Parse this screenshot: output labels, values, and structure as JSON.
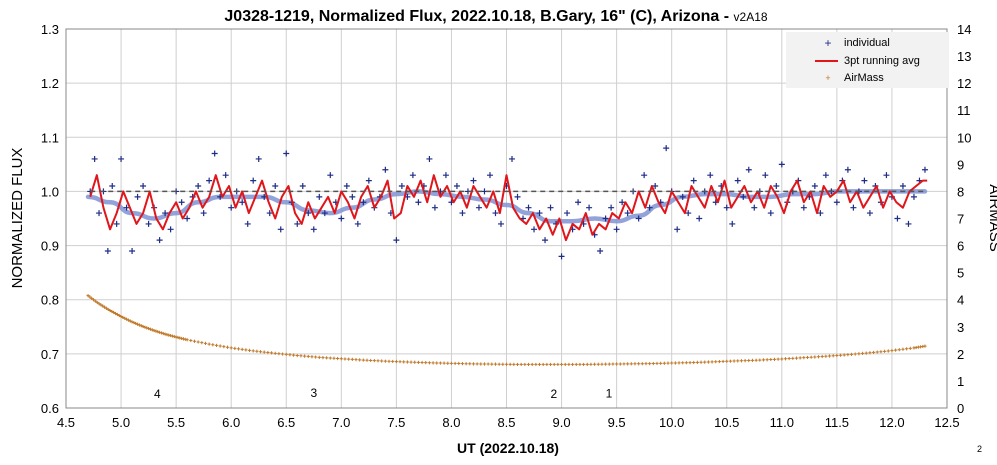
{
  "chart_data": {
    "type": "scatter",
    "title": "J0328-1219, Normalized Flux, 2022.10.18, B.Gary, 16\" (C), Arizona - ",
    "version_tag": "v2A18",
    "xlabel": "UT (2022.10.18)",
    "ylabel": "NORMALIZED FLUX",
    "y2label": "AIRMASS",
    "xlim": [
      4.5,
      12.5
    ],
    "ylim": [
      0.6,
      1.3
    ],
    "y2lim": [
      0,
      14
    ],
    "x_ticks": [
      "4.5",
      "5.0",
      "5.5",
      "6.0",
      "6.5",
      "7.0",
      "7.5",
      "8.0",
      "8.5",
      "9.0",
      "9.5",
      "10.0",
      "10.5",
      "11.0",
      "11.5",
      "12.0",
      "12.5"
    ],
    "y_ticks": [
      "0.6",
      "0.7",
      "0.8",
      "0.9",
      "1.0",
      "1.1",
      "1.2",
      "1.3"
    ],
    "y2_ticks": [
      "0",
      "1",
      "2",
      "3",
      "4",
      "5",
      "6",
      "7",
      "8",
      "9",
      "10",
      "11",
      "12",
      "13",
      "14"
    ],
    "grid": true,
    "legend_position": "top-right",
    "reference_line_y": 1.0,
    "page_number": "2",
    "annotations": [
      {
        "text": "4",
        "x": 5.33,
        "y": 0.626
      },
      {
        "text": "3",
        "x": 6.75,
        "y": 0.628
      },
      {
        "text": "2",
        "x": 8.93,
        "y": 0.626
      },
      {
        "text": "1",
        "x": 9.43,
        "y": 0.627
      }
    ],
    "series": [
      {
        "name": "individual",
        "color": "#1f2d86",
        "marker": "plus",
        "x": [
          4.72,
          4.76,
          4.8,
          4.84,
          4.88,
          4.92,
          4.96,
          5.0,
          5.05,
          5.1,
          5.15,
          5.2,
          5.25,
          5.3,
          5.35,
          5.4,
          5.45,
          5.5,
          5.55,
          5.6,
          5.65,
          5.7,
          5.75,
          5.8,
          5.85,
          5.9,
          5.95,
          6.0,
          6.05,
          6.1,
          6.15,
          6.2,
          6.25,
          6.3,
          6.35,
          6.4,
          6.45,
          6.5,
          6.55,
          6.6,
          6.65,
          6.7,
          6.75,
          6.8,
          6.85,
          6.9,
          6.95,
          7.0,
          7.05,
          7.1,
          7.15,
          7.2,
          7.25,
          7.3,
          7.35,
          7.4,
          7.45,
          7.5,
          7.55,
          7.6,
          7.65,
          7.7,
          7.75,
          7.8,
          7.85,
          7.9,
          7.95,
          8.0,
          8.05,
          8.1,
          8.15,
          8.2,
          8.25,
          8.3,
          8.35,
          8.4,
          8.45,
          8.5,
          8.55,
          8.6,
          8.65,
          8.7,
          8.75,
          8.8,
          8.85,
          8.9,
          8.95,
          9.0,
          9.05,
          9.1,
          9.15,
          9.2,
          9.25,
          9.3,
          9.35,
          9.4,
          9.45,
          9.5,
          9.55,
          9.6,
          9.65,
          9.7,
          9.75,
          9.8,
          9.85,
          9.9,
          9.95,
          10.0,
          10.05,
          10.1,
          10.15,
          10.2,
          10.25,
          10.3,
          10.35,
          10.4,
          10.45,
          10.5,
          10.55,
          10.6,
          10.65,
          10.7,
          10.75,
          10.8,
          10.85,
          10.9,
          10.95,
          11.0,
          11.05,
          11.1,
          11.15,
          11.2,
          11.25,
          11.3,
          11.35,
          11.4,
          11.45,
          11.5,
          11.55,
          11.6,
          11.65,
          11.7,
          11.75,
          11.8,
          11.85,
          11.9,
          11.95,
          12.0,
          12.05,
          12.1,
          12.15,
          12.2,
          12.25,
          12.3
        ],
        "y": [
          1.0,
          1.06,
          0.96,
          1.0,
          0.89,
          1.01,
          0.94,
          1.06,
          0.97,
          0.89,
          0.99,
          1.01,
          0.94,
          0.97,
          0.91,
          0.96,
          0.93,
          1.0,
          0.98,
          0.95,
          0.99,
          1.01,
          0.96,
          1.02,
          1.07,
          0.99,
          1.03,
          0.97,
          1.0,
          0.98,
          0.94,
          1.02,
          1.06,
          0.99,
          0.96,
          1.01,
          0.93,
          1.07,
          0.98,
          0.94,
          1.01,
          0.96,
          0.93,
          0.99,
          0.96,
          1.03,
          0.98,
          0.95,
          1.01,
          0.99,
          0.94,
          0.98,
          1.02,
          0.97,
          0.99,
          1.04,
          0.96,
          0.91,
          1.01,
          0.99,
          1.03,
          0.98,
          1.01,
          1.06,
          0.97,
          1.0,
          1.03,
          0.98,
          1.01,
          0.96,
          1.0,
          1.02,
          0.97,
          1.0,
          1.03,
          0.96,
          0.94,
          1.01,
          1.06,
          0.99,
          0.95,
          0.97,
          0.93,
          0.96,
          0.91,
          0.97,
          0.94,
          0.88,
          0.96,
          0.93,
          0.98,
          0.94,
          0.97,
          0.92,
          0.89,
          0.95,
          0.97,
          0.93,
          0.98,
          0.96,
          1.0,
          0.95,
          1.03,
          0.97,
          1.01,
          0.98,
          1.08,
          1.0,
          0.93,
          0.99,
          0.96,
          1.02,
          0.95,
          1.0,
          1.03,
          0.98,
          1.01,
          0.97,
          0.94,
          1.02,
          0.99,
          1.04,
          0.97,
          1.0,
          1.03,
          0.96,
          1.01,
          1.05,
          0.98,
          1.0,
          1.02,
          0.97,
          0.99,
          1.01,
          0.96,
          1.03,
          1.0,
          0.98,
          1.02,
          1.04,
          0.97,
          1.0,
          1.02,
          0.96,
          1.01,
          0.98,
          1.03,
          0.99,
          0.95,
          1.01,
          0.94,
          0.99,
          1.02,
          1.04
        ]
      },
      {
        "name": "3pt running avg",
        "color": "#e0161b",
        "marker": "line",
        "x": [
          4.72,
          4.78,
          4.84,
          4.9,
          4.96,
          5.02,
          5.08,
          5.14,
          5.2,
          5.26,
          5.32,
          5.38,
          5.44,
          5.5,
          5.56,
          5.62,
          5.68,
          5.74,
          5.8,
          5.86,
          5.92,
          5.98,
          6.04,
          6.1,
          6.16,
          6.22,
          6.28,
          6.34,
          6.4,
          6.46,
          6.52,
          6.58,
          6.64,
          6.7,
          6.76,
          6.82,
          6.88,
          6.94,
          7.0,
          7.06,
          7.12,
          7.18,
          7.24,
          7.3,
          7.36,
          7.42,
          7.48,
          7.54,
          7.6,
          7.66,
          7.72,
          7.78,
          7.84,
          7.9,
          7.96,
          8.02,
          8.08,
          8.14,
          8.2,
          8.26,
          8.32,
          8.38,
          8.44,
          8.5,
          8.56,
          8.62,
          8.68,
          8.74,
          8.8,
          8.86,
          8.92,
          8.98,
          9.04,
          9.1,
          9.16,
          9.22,
          9.28,
          9.34,
          9.4,
          9.46,
          9.52,
          9.58,
          9.64,
          9.7,
          9.76,
          9.82,
          9.88,
          9.94,
          10.0,
          10.06,
          10.12,
          10.18,
          10.24,
          10.3,
          10.36,
          10.42,
          10.48,
          10.54,
          10.6,
          10.66,
          10.72,
          10.78,
          10.84,
          10.9,
          10.96,
          11.02,
          11.08,
          11.14,
          11.2,
          11.26,
          11.32,
          11.38,
          11.44,
          11.5,
          11.56,
          11.62,
          11.68,
          11.74,
          11.8,
          11.86,
          11.92,
          11.98,
          12.04,
          12.1,
          12.16,
          12.22,
          12.28,
          12.32
        ],
        "y": [
          0.99,
          1.03,
          0.97,
          0.93,
          0.96,
          1.0,
          0.97,
          0.94,
          0.96,
          1.0,
          0.95,
          0.93,
          0.96,
          0.98,
          0.95,
          0.97,
          1.0,
          0.97,
          0.99,
          1.03,
          0.99,
          1.01,
          0.97,
          1.0,
          0.96,
          0.99,
          1.02,
          0.98,
          0.95,
          0.99,
          1.01,
          0.96,
          0.94,
          0.98,
          0.95,
          0.97,
          0.99,
          0.96,
          1.0,
          0.98,
          0.95,
          0.99,
          1.01,
          0.97,
          0.99,
          1.02,
          0.95,
          0.96,
          1.01,
          0.99,
          1.02,
          0.98,
          1.03,
          0.99,
          1.01,
          0.98,
          1.0,
          0.97,
          1.01,
          0.99,
          0.97,
          1.0,
          0.96,
          1.03,
          0.97,
          0.95,
          0.94,
          0.96,
          0.93,
          0.95,
          0.92,
          0.95,
          0.91,
          0.94,
          0.93,
          0.96,
          0.92,
          0.94,
          0.93,
          0.96,
          0.95,
          0.98,
          0.96,
          1.0,
          0.97,
          1.01,
          0.98,
          0.96,
          1.0,
          0.98,
          0.96,
          1.01,
          0.99,
          0.97,
          1.01,
          0.98,
          1.02,
          0.97,
          0.99,
          1.01,
          0.98,
          1.0,
          0.97,
          1.01,
          0.99,
          0.96,
          1.0,
          1.02,
          0.98,
          1.0,
          0.96,
          1.01,
          0.99,
          1.0,
          1.02,
          0.98,
          1.0,
          0.97,
          0.99,
          1.01,
          0.97,
          1.0,
          0.98,
          0.97,
          1.0,
          1.01,
          1.02,
          1.02
        ]
      },
      {
        "name": "AirMass",
        "color": "#c07a2a",
        "marker": "dot",
        "axis": "right",
        "x": [
          4.7,
          4.8,
          4.9,
          5.0,
          5.1,
          5.2,
          5.3,
          5.4,
          5.5,
          5.6,
          5.8,
          6.0,
          6.2,
          6.4,
          6.6,
          6.8,
          7.0,
          7.2,
          7.4,
          7.6,
          7.8,
          8.0,
          8.2,
          8.4,
          8.6,
          8.8,
          9.0,
          9.2,
          9.4,
          9.6,
          9.8,
          10.0,
          10.2,
          10.4,
          10.6,
          10.8,
          11.0,
          11.2,
          11.4,
          11.6,
          11.8,
          12.0,
          12.2,
          12.32
        ],
        "y": [
          4.15,
          3.85,
          3.6,
          3.38,
          3.18,
          3.01,
          2.86,
          2.73,
          2.62,
          2.52,
          2.36,
          2.22,
          2.11,
          2.02,
          1.94,
          1.87,
          1.82,
          1.77,
          1.73,
          1.7,
          1.67,
          1.65,
          1.63,
          1.62,
          1.61,
          1.61,
          1.61,
          1.61,
          1.62,
          1.63,
          1.64,
          1.66,
          1.68,
          1.71,
          1.74,
          1.77,
          1.81,
          1.86,
          1.91,
          1.97,
          2.04,
          2.12,
          2.22,
          2.3
        ]
      },
      {
        "name": "",
        "color": "#7f92d4",
        "marker": "smooth",
        "x": [
          4.7,
          4.9,
          5.1,
          5.3,
          5.5,
          5.7,
          5.9,
          6.1,
          6.3,
          6.5,
          6.7,
          6.9,
          7.1,
          7.3,
          7.5,
          7.7,
          7.9,
          8.1,
          8.3,
          8.5,
          8.7,
          8.9,
          9.1,
          9.3,
          9.5,
          9.7,
          9.9,
          10.1,
          10.3,
          10.5,
          10.7,
          10.9,
          11.1,
          11.3,
          11.5,
          11.7,
          11.9,
          12.1,
          12.3
        ],
        "y": [
          0.99,
          0.98,
          0.96,
          0.95,
          0.96,
          0.98,
          0.99,
          0.99,
          0.99,
          0.98,
          0.965,
          0.96,
          0.97,
          0.985,
          0.995,
          1.0,
          0.995,
          0.99,
          0.985,
          0.975,
          0.96,
          0.945,
          0.945,
          0.95,
          0.945,
          0.955,
          0.975,
          0.99,
          0.995,
          0.995,
          0.99,
          0.99,
          0.995,
          0.995,
          1.0,
          1.0,
          1.0,
          1.0,
          1.0
        ]
      }
    ]
  }
}
